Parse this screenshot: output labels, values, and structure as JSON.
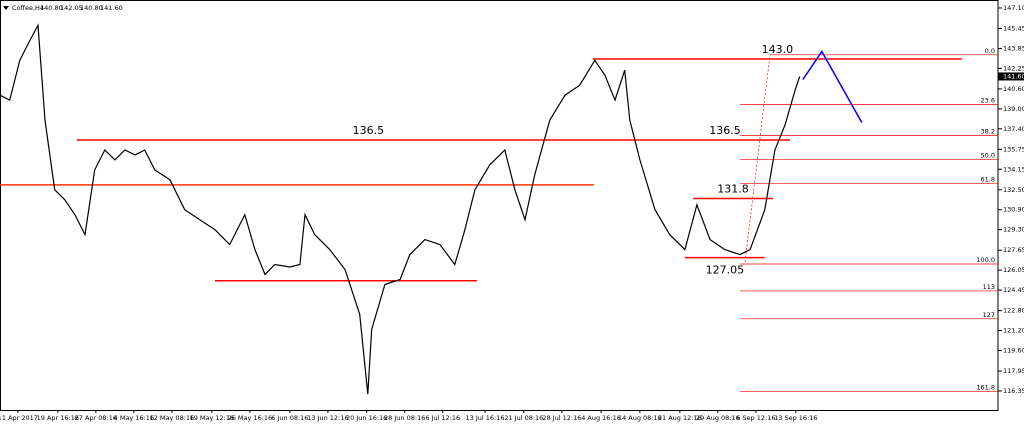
{
  "chart_data": {
    "type": "line",
    "header": {
      "symbol": "Coffee,H4",
      "ohlc": [
        "140.80",
        "142.05",
        "140.80",
        "141.60"
      ]
    },
    "xlim": [
      -4.6,
      252.6
    ],
    "ylim": [
      114.82,
      147.74
    ],
    "xticks": [
      {
        "value": 0,
        "label": "11 Apr 2017"
      },
      {
        "value": 10.3,
        "label": "19 Apr 16:16"
      },
      {
        "value": 20.1,
        "label": "27 Apr 08:16"
      },
      {
        "value": 29.9,
        "label": "4 May 16:16"
      },
      {
        "value": 39.7,
        "label": "12 May 08:16"
      },
      {
        "value": 50.0,
        "label": "19 May 12:16"
      },
      {
        "value": 59.8,
        "label": "26 May 16:16"
      },
      {
        "value": 70.1,
        "label": "6 Jun 08:16"
      },
      {
        "value": 79.9,
        "label": "13 Jun 12:16"
      },
      {
        "value": 89.9,
        "label": "20 Jun 16:16"
      },
      {
        "value": 99.7,
        "label": "28 Jun 08:16"
      },
      {
        "value": 109.5,
        "label": "6 Jul 12:16"
      },
      {
        "value": 120.4,
        "label": "13 Jul 16:16"
      },
      {
        "value": 130.4,
        "label": "21 Jul 08:16"
      },
      {
        "value": 140.2,
        "label": "28 Jul 12:16"
      },
      {
        "value": 150.3,
        "label": "4 Aug 16:16"
      },
      {
        "value": 160.3,
        "label": "14 Aug 08:16"
      },
      {
        "value": 170.6,
        "label": "21 Aug 12:16"
      },
      {
        "value": 180.4,
        "label": "29 Aug 08:16"
      },
      {
        "value": 190.2,
        "label": "6 Sep 12:16"
      },
      {
        "value": 200.5,
        "label": "13 Sep 16:16"
      }
    ],
    "yticks": [
      {
        "value": 147.1,
        "label": "147.10"
      },
      145.45,
      143.85,
      142.25,
      {
        "value": 140.6,
        "label": "140.60"
      },
      {
        "value": 139.0,
        "label": "139.00"
      },
      {
        "value": 137.4,
        "label": "137.40"
      },
      135.75,
      134.15,
      {
        "value": 132.5,
        "label": "132.50"
      },
      {
        "value": 130.9,
        "label": "130.90"
      },
      {
        "value": 129.3,
        "label": "129.30"
      },
      127.65,
      126.05,
      124.45,
      {
        "value": 122.8,
        "label": "122.80"
      },
      {
        "value": 121.2,
        "label": "121.20"
      },
      {
        "value": 119.6,
        "label": "119.60"
      },
      117.95,
      116.35
    ],
    "series": [
      {
        "color": "#000000",
        "x": [
          -4.6,
          -2.1,
          0.5,
          3.1,
          5.2,
          7.0,
          9.5,
          12.1,
          14.7,
          17.3,
          19.8,
          22.4,
          25.0,
          27.6,
          30.2,
          32.7,
          35.3,
          39.2,
          43.0,
          46.9,
          50.8,
          54.6,
          58.5,
          61.1,
          63.7,
          66.2,
          70.1,
          72.7,
          74.0,
          76.5,
          80.4,
          84.3,
          88.1,
          90.2,
          91.2,
          94.6,
          98.5,
          101.0,
          104.9,
          108.8,
          112.6,
          115.2,
          117.8,
          121.6,
          125.5,
          128.1,
          130.7,
          133.2,
          137.1,
          141.0,
          144.8,
          148.7,
          151.3,
          153.9,
          156.4,
          157.7,
          160.3,
          164.2,
          168.0,
          171.9,
          175.0,
          178.4,
          182.2,
          186.1,
          188.7,
          192.5,
          195.1,
          197.7,
          200.3,
          201.5
        ],
        "values": [
          140.1,
          139.7,
          142.9,
          144.5,
          145.7,
          138.1,
          132.5,
          131.7,
          130.5,
          128.9,
          134.1,
          135.7,
          134.9,
          135.7,
          135.3,
          135.7,
          134.1,
          133.3,
          130.9,
          130.1,
          129.3,
          128.1,
          130.5,
          127.7,
          125.7,
          126.5,
          126.3,
          126.5,
          130.5,
          128.9,
          127.7,
          126.1,
          122.5,
          116.1,
          121.3,
          124.9,
          125.3,
          127.3,
          128.5,
          128.1,
          126.5,
          129.3,
          132.5,
          134.5,
          135.7,
          132.5,
          130.1,
          133.7,
          138.1,
          140.1,
          140.9,
          142.9,
          141.7,
          139.7,
          142.1,
          138.1,
          134.9,
          130.9,
          128.9,
          127.7,
          131.3,
          128.5,
          127.7,
          127.3,
          127.7,
          130.9,
          135.7,
          137.7,
          140.5,
          141.6
        ]
      }
    ],
    "last_price": {
      "value": 141.6,
      "label": "141.60"
    },
    "levels": [
      {
        "label": "143.0",
        "value": 143.0,
        "x": [
          148.2,
          243.3
        ],
        "color": "#ff0000"
      },
      {
        "label": "136.5",
        "value": 136.5,
        "x": [
          15.2,
          165.5
        ],
        "color": "#ff0000"
      },
      {
        "label": "136.5",
        "value": 136.5,
        "x": [
          165.5,
          199.0
        ],
        "color": "#ff0000"
      },
      {
        "label": "131.8",
        "value": 131.8,
        "x": [
          174.0,
          194.6
        ],
        "color": "#ff0000"
      },
      {
        "label": "127.05",
        "value": 127.05,
        "x": [
          171.9,
          192.5
        ],
        "color": "#ff0000"
      },
      {
        "value": 132.9,
        "x": [
          -4.6,
          148.5
        ],
        "color": "#ff3300"
      },
      {
        "value": 125.2,
        "x": [
          50.8,
          118.3
        ],
        "color": "#ff0000"
      }
    ],
    "fibo": {
      "color": "#ff0000",
      "x": [
        186.1,
        252.6
      ],
      "levels": [
        {
          "label": "0.0",
          "value": 143.34
        },
        {
          "label": "23.6",
          "value": 139.34
        },
        {
          "label": "38.2",
          "value": 136.86
        },
        {
          "label": "50.0",
          "value": 134.94
        },
        {
          "label": "61.8",
          "value": 133.02
        },
        {
          "label": "100.0",
          "value": 126.54
        },
        {
          "label": "113",
          "value": 124.38
        },
        {
          "label": "127",
          "value": 122.14
        },
        {
          "label": "161.8",
          "value": 116.3
        }
      ]
    },
    "projection": {
      "color": "#0000ff",
      "x": [
        202.3,
        207.2,
        217.5
      ],
      "values": [
        141.35,
        143.6,
        137.9
      ]
    }
  }
}
